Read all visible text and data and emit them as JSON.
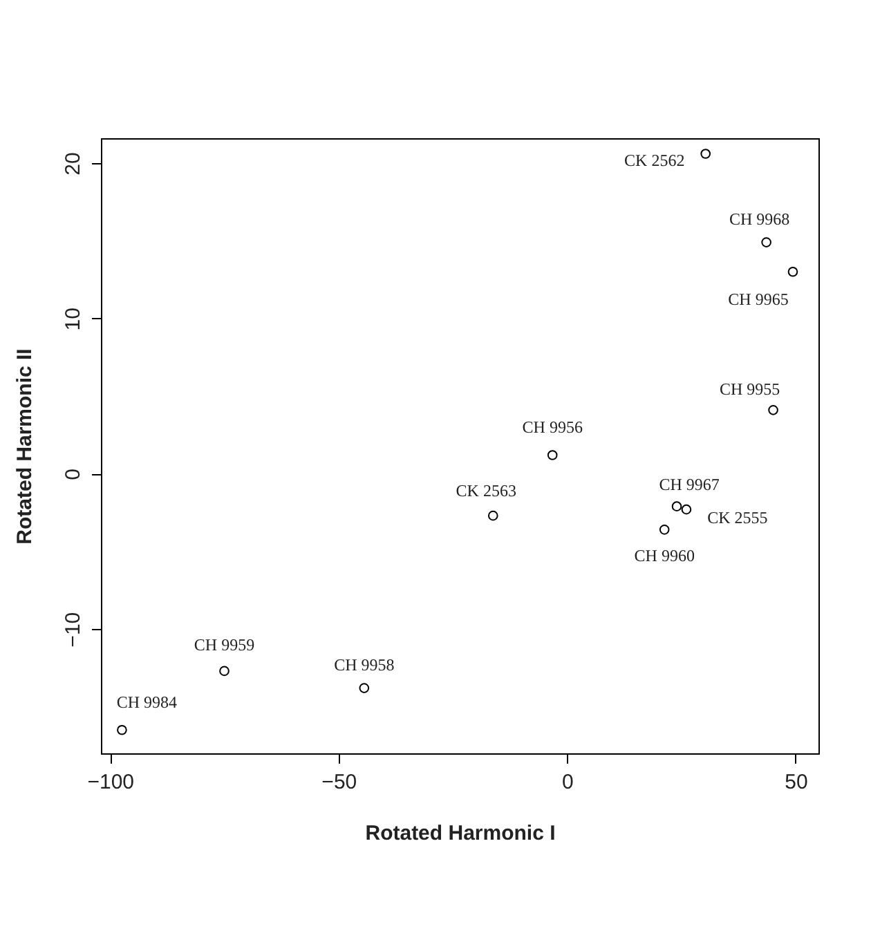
{
  "chart_data": {
    "type": "scatter",
    "xlabel": "Rotated Harmonic I",
    "ylabel": "Rotated Harmonic II",
    "x": [
      30.3,
      43.6,
      49.4,
      45.1,
      -3.2,
      -16.2,
      24.0,
      26.1,
      21.3,
      -75.0,
      -44.4,
      -97.4
    ],
    "series": [
      {
        "color": "#000000",
        "values": [
          20.6,
          14.9,
          13.0,
          4.1,
          1.2,
          -2.7,
          -2.1,
          -2.3,
          -3.6,
          -12.7,
          -13.8,
          -16.5
        ]
      }
    ],
    "xlim": [
      -102,
      55
    ],
    "ylim": [
      -18,
      21.6
    ],
    "xticks": [
      -100,
      -50,
      0,
      50
    ],
    "yticks": [
      -10,
      0,
      10,
      20
    ],
    "grid": false,
    "marker": "circle",
    "annotations": [
      {
        "text": "CK 2562",
        "x": 30.3,
        "y": 20.6
      },
      {
        "text": "CH 9968",
        "x": 43.6,
        "y": 14.9
      },
      {
        "text": "CH 9965",
        "x": 49.4,
        "y": 13.0
      },
      {
        "text": "CH 9955",
        "x": 45.1,
        "y": 4.1
      },
      {
        "text": "CH 9956",
        "x": -3.2,
        "y": 1.2
      },
      {
        "text": "CK 2563",
        "x": -16.2,
        "y": -2.7
      },
      {
        "text": "CH 9967",
        "x": 24.0,
        "y": -2.1
      },
      {
        "text": "CK 2555",
        "x": 26.1,
        "y": -2.3
      },
      {
        "text": "CH 9960",
        "x": 21.3,
        "y": -3.6
      },
      {
        "text": "CH 9959",
        "x": -75.0,
        "y": -12.7
      },
      {
        "text": "CH 9958",
        "x": -44.4,
        "y": -13.8
      },
      {
        "text": "CH 9984",
        "x": -97.4,
        "y": -16.5
      }
    ]
  }
}
